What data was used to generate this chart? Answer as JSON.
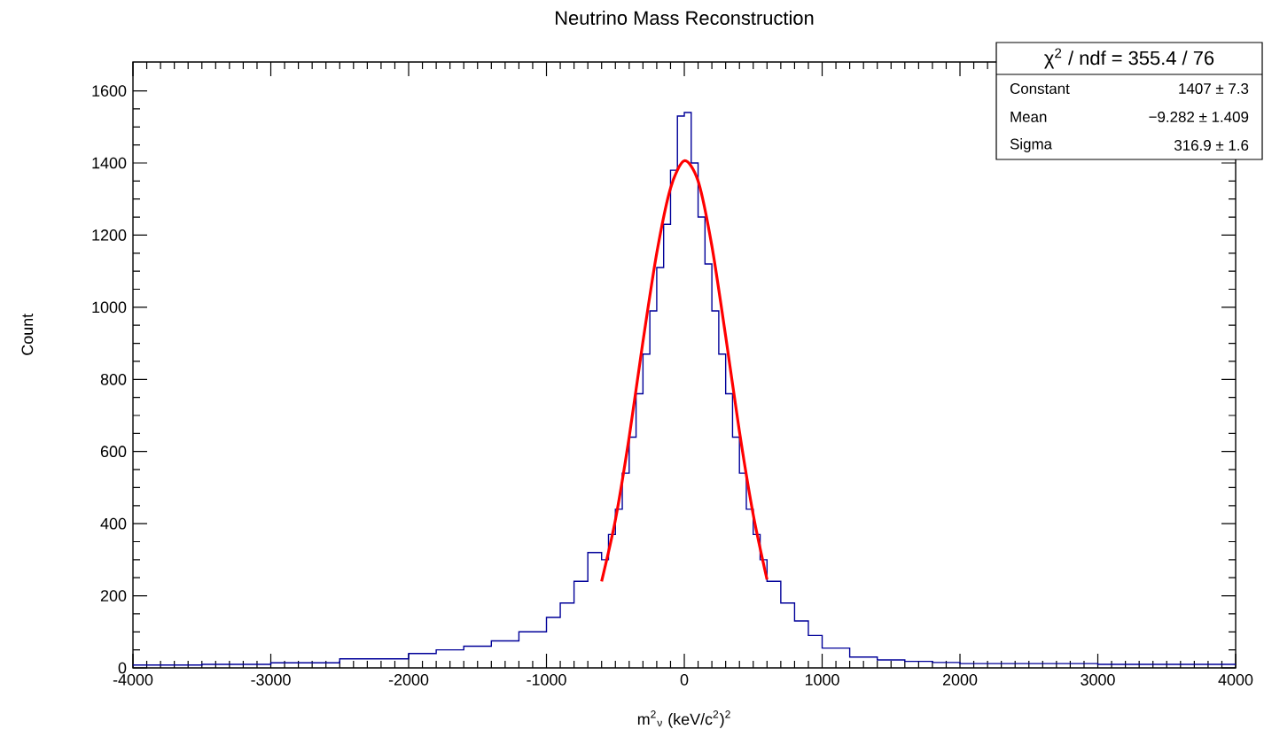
{
  "chart_data": {
    "type": "histogram",
    "title": "Neutrino Mass Reconstruction",
    "xlabel": "m$^{2}$$_{ν}$ (keV/c$^{2}$)$^{2}$",
    "ylabel": "Count",
    "xlim": [
      -4000,
      4000
    ],
    "ylim": [
      0,
      1680
    ],
    "xticks": [
      -4000,
      -3000,
      -2000,
      -1000,
      0,
      1000,
      2000,
      3000,
      4000
    ],
    "yticks": [
      0,
      200,
      400,
      600,
      800,
      1000,
      1200,
      1400,
      1600
    ],
    "grid": false,
    "annotations": [
      "χ$^{2}$ / ndf = 355.4 / 76",
      "Constant",
      "1407 ± 7.3",
      "Mean",
      "−9.282 ± 1.409",
      "Sigma",
      "316.9 ± 1.6"
    ],
    "series": [
      {
        "color": "#000099",
        "bins": [
          -4000,
          -3500,
          -3000,
          -2500,
          -2000,
          -1800,
          -1600,
          -1400,
          -1200,
          -1000,
          -900,
          -800,
          -700,
          -600,
          -550,
          -500,
          -450,
          -400,
          -350,
          -300,
          -250,
          -200,
          -150,
          -100,
          -50,
          0,
          50,
          100,
          150,
          200,
          250,
          300,
          350,
          400,
          450,
          500,
          550,
          600,
          700,
          800,
          900,
          1000,
          1200,
          1400,
          1600,
          1800,
          2000,
          2500,
          3000,
          3500,
          4000
        ],
        "values": [
          8,
          10,
          14,
          25,
          40,
          50,
          60,
          75,
          100,
          140,
          180,
          240,
          320,
          300,
          370,
          440,
          540,
          640,
          760,
          870,
          990,
          1110,
          1230,
          1380,
          1530,
          1540,
          1400,
          1250,
          1120,
          990,
          870,
          760,
          640,
          540,
          440,
          370,
          300,
          240,
          180,
          130,
          90,
          55,
          30,
          22,
          18,
          15,
          12,
          12,
          10,
          10
        ]
      },
      {
        "type": "line",
        "color": "#ff0000",
        "x": [
          -600,
          -500,
          -400,
          -300,
          -200,
          -100,
          0,
          100,
          200,
          300,
          400,
          500,
          600
        ],
        "values": [
          240,
          410,
          640,
          905,
          1150,
          1330,
          1406,
          1350,
          1170,
          920,
          655,
          425,
          245
        ]
      }
    ]
  }
}
